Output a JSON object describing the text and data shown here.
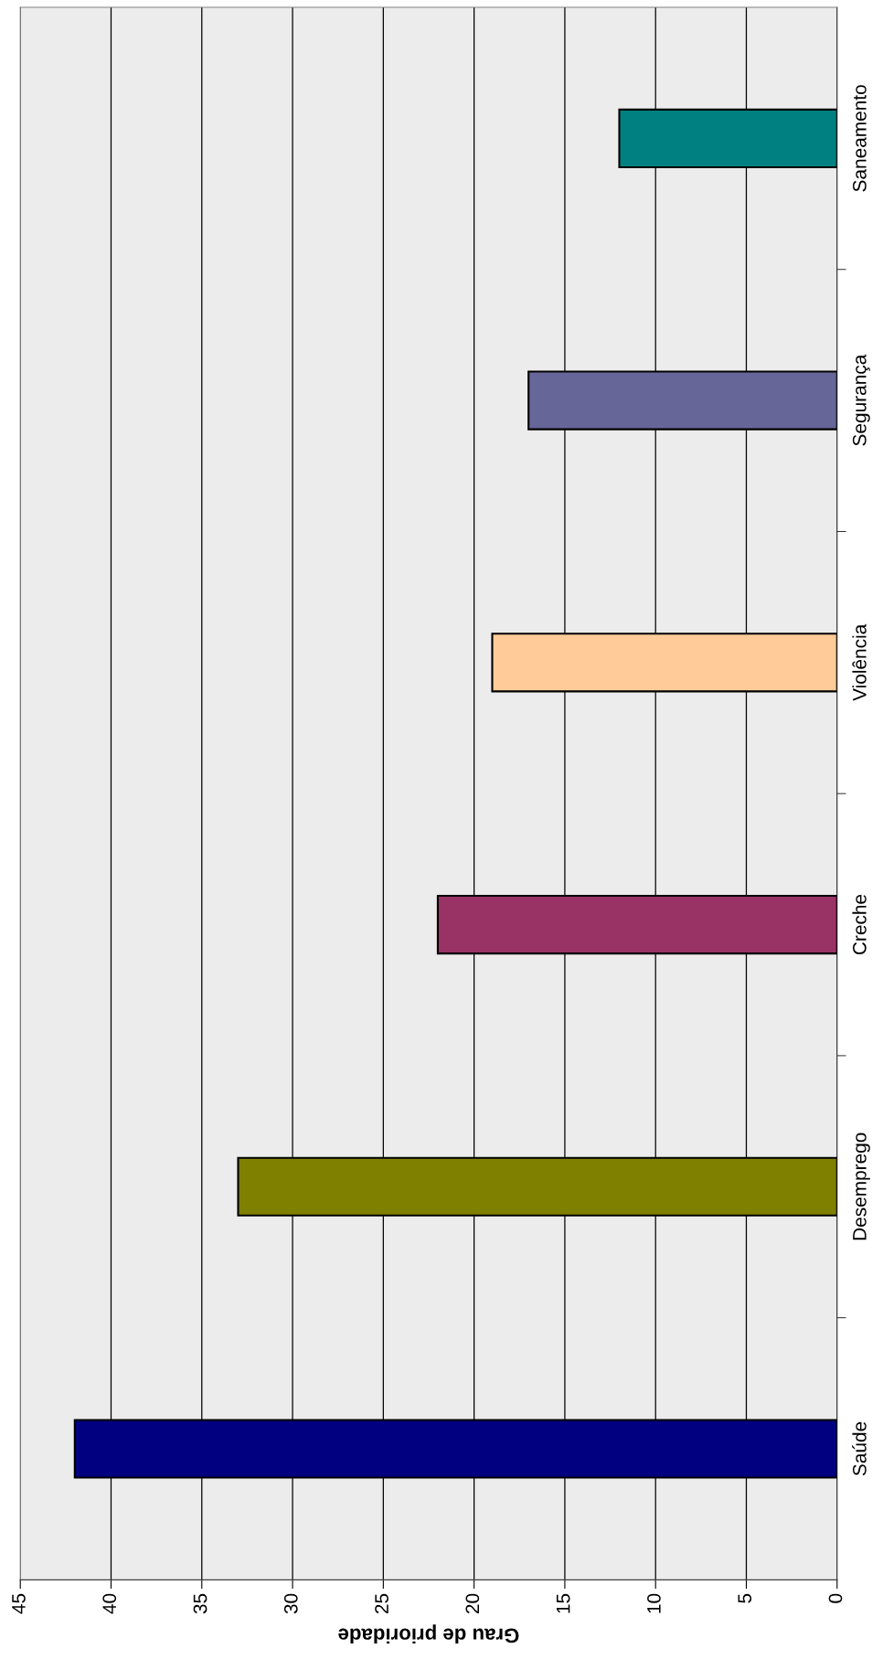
{
  "chart_data": {
    "type": "bar",
    "orientation": "horizontal",
    "xlabel": "Grau de prioridade",
    "categories": [
      "Saneamento",
      "Segurança",
      "Violência",
      "Creche",
      "Desemprego",
      "Saúde"
    ],
    "values": [
      12,
      17,
      19,
      22,
      33,
      42
    ],
    "colors": [
      "#008080",
      "#666699",
      "#ffcc99",
      "#993366",
      "#808000",
      "#000080"
    ],
    "xlim": [
      45,
      0
    ],
    "xticks": [
      45,
      40,
      35,
      30,
      25,
      20,
      15,
      10,
      5,
      0
    ],
    "grid": "x"
  }
}
